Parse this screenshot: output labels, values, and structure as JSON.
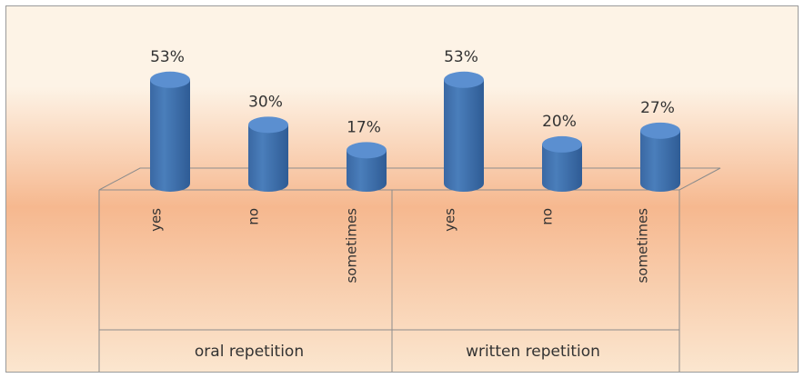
{
  "chart_data": {
    "type": "bar",
    "style": "3d-cylinder",
    "groups": [
      {
        "label": "oral repetition",
        "categories": [
          "yes",
          "no",
          "sometimes"
        ],
        "values": [
          53,
          30,
          17
        ]
      },
      {
        "label": "written repetition",
        "categories": [
          "yes",
          "no",
          "sometimes"
        ],
        "values": [
          53,
          20,
          27
        ]
      }
    ],
    "value_suffix": "%",
    "ylim": [
      0,
      60
    ],
    "grid": false,
    "legend": "none",
    "colors": {
      "bar": "#4a7ebb",
      "background_top": "#fdf3e6",
      "background_mid": "#f6b88f",
      "background_bottom": "#fbe6cf",
      "axis": "#8c8c8c",
      "text": "#333333"
    }
  }
}
